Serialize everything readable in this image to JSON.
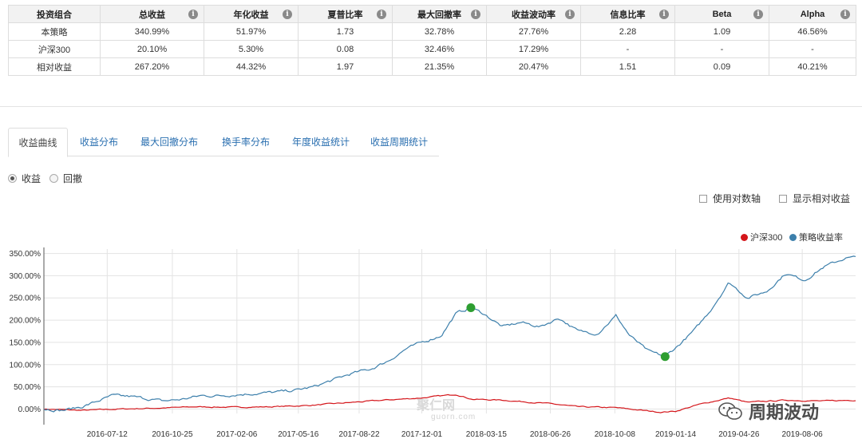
{
  "metrics": {
    "headers": [
      "投资组合",
      "总收益",
      "年化收益",
      "夏普比率",
      "最大回撤率",
      "收益波动率",
      "信息比率",
      "Beta",
      "Alpha"
    ],
    "rows": [
      [
        "本策略",
        "340.99%",
        "51.97%",
        "1.73",
        "32.78%",
        "27.76%",
        "2.28",
        "1.09",
        "46.56%"
      ],
      [
        "沪深300",
        "20.10%",
        "5.30%",
        "0.08",
        "32.46%",
        "17.29%",
        "-",
        "-",
        "-"
      ],
      [
        "相对收益",
        "267.20%",
        "44.32%",
        "1.97",
        "21.35%",
        "20.47%",
        "1.51",
        "0.09",
        "40.21%"
      ]
    ],
    "info_icon": "info-icon"
  },
  "tabs": [
    "收益曲线",
    "收益分布",
    "最大回撤分布",
    "换手率分布",
    "年度收益统计",
    "收益周期统计"
  ],
  "active_tab": "收益曲线",
  "radios": [
    {
      "label": "收益",
      "checked": true
    },
    {
      "label": "回撤",
      "checked": false
    }
  ],
  "checkboxes": [
    {
      "label": "使用对数轴",
      "checked": false
    },
    {
      "label": "显示相对收益",
      "checked": false
    }
  ],
  "watermarks": {
    "site_cn": "聚仁网",
    "site_url": "guorn.com",
    "account": "周期波动",
    "account_icon": "wechat-icon"
  },
  "colors": {
    "strategy": "#3c7fab",
    "benchmark": "#d4161b",
    "marker": "#2e9e31",
    "grid": "#e3e3e3"
  },
  "chart_data": {
    "type": "line",
    "y_ticks": [
      "0.00%",
      "50.00%",
      "100.00%",
      "150.00%",
      "200.00%",
      "250.00%",
      "300.00%",
      "350.00%"
    ],
    "y_tick_values": [
      0,
      50,
      100,
      150,
      200,
      250,
      300,
      350
    ],
    "ylim": [
      -10,
      360
    ],
    "x_ticks": [
      "2016-07-12",
      "2016-10-25",
      "2017-02-06",
      "2017-05-16",
      "2017-08-22",
      "2017-12-01",
      "2018-03-15",
      "2018-06-26",
      "2018-10-08",
      "2019-01-14",
      "2019-04-26",
      "2019-08-06"
    ],
    "x_start": "2016-04-01",
    "x_end": "2019-10-31",
    "legend": [
      "沪深300",
      "策略收益率"
    ],
    "series": [
      {
        "name": "策略收益率",
        "color": "#3c7fab",
        "points": [
          [
            "2016-04-01",
            0
          ],
          [
            "2016-05-01",
            -3
          ],
          [
            "2016-06-01",
            5
          ],
          [
            "2016-07-01",
            20
          ],
          [
            "2016-07-20",
            30
          ],
          [
            "2016-08-20",
            28
          ],
          [
            "2016-09-20",
            22
          ],
          [
            "2016-10-10",
            18
          ],
          [
            "2016-11-10",
            22
          ],
          [
            "2016-12-10",
            30
          ],
          [
            "2017-01-10",
            30
          ],
          [
            "2017-02-10",
            33
          ],
          [
            "2017-03-10",
            35
          ],
          [
            "2017-04-10",
            38
          ],
          [
            "2017-05-10",
            42
          ],
          [
            "2017-06-10",
            50
          ],
          [
            "2017-07-10",
            65
          ],
          [
            "2017-08-10",
            80
          ],
          [
            "2017-09-10",
            90
          ],
          [
            "2017-10-10",
            110
          ],
          [
            "2017-11-05",
            135
          ],
          [
            "2017-12-01",
            150
          ],
          [
            "2018-01-01",
            165
          ],
          [
            "2018-01-25",
            215
          ],
          [
            "2018-02-18",
            228
          ],
          [
            "2018-03-10",
            215
          ],
          [
            "2018-04-10",
            185
          ],
          [
            "2018-05-10",
            195
          ],
          [
            "2018-06-10",
            185
          ],
          [
            "2018-07-10",
            205
          ],
          [
            "2018-08-10",
            175
          ],
          [
            "2018-09-10",
            170
          ],
          [
            "2018-10-10",
            210
          ],
          [
            "2018-11-01",
            165
          ],
          [
            "2018-12-01",
            130
          ],
          [
            "2018-12-28",
            118
          ],
          [
            "2019-01-20",
            145
          ],
          [
            "2019-02-15",
            180
          ],
          [
            "2019-03-10",
            220
          ],
          [
            "2019-04-10",
            285
          ],
          [
            "2019-05-10",
            250
          ],
          [
            "2019-06-10",
            265
          ],
          [
            "2019-07-10",
            305
          ],
          [
            "2019-08-10",
            290
          ],
          [
            "2019-09-10",
            320
          ],
          [
            "2019-10-15",
            340
          ],
          [
            "2019-10-31",
            341
          ]
        ]
      },
      {
        "name": "沪深300",
        "color": "#d4161b",
        "points": [
          [
            "2016-04-01",
            0
          ],
          [
            "2016-06-01",
            -3
          ],
          [
            "2016-08-01",
            0
          ],
          [
            "2016-10-01",
            2
          ],
          [
            "2016-12-01",
            5
          ],
          [
            "2017-02-01",
            4
          ],
          [
            "2017-04-01",
            5
          ],
          [
            "2017-06-01",
            8
          ],
          [
            "2017-08-01",
            14
          ],
          [
            "2017-10-01",
            20
          ],
          [
            "2017-12-01",
            25
          ],
          [
            "2018-01-25",
            33
          ],
          [
            "2018-02-20",
            22
          ],
          [
            "2018-04-10",
            20
          ],
          [
            "2018-06-26",
            12
          ],
          [
            "2018-08-10",
            5
          ],
          [
            "2018-10-10",
            3
          ],
          [
            "2018-12-20",
            -7
          ],
          [
            "2019-01-14",
            -5
          ],
          [
            "2019-02-20",
            10
          ],
          [
            "2019-04-10",
            25
          ],
          [
            "2019-05-10",
            15
          ],
          [
            "2019-07-10",
            20
          ],
          [
            "2019-09-10",
            18
          ],
          [
            "2019-10-31",
            20
          ]
        ]
      }
    ],
    "markers": [
      {
        "date": "2018-02-18",
        "value": 228
      },
      {
        "date": "2018-12-28",
        "value": 118
      }
    ],
    "grid": true,
    "legend_position": "top-right"
  }
}
